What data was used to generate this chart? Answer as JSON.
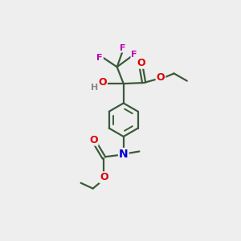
{
  "bg_color": "#eeeeee",
  "atom_colors": {
    "C": "#2d4d2d",
    "O": "#dd0000",
    "N": "#0000cc",
    "F": "#bb00bb",
    "H": "#888888"
  },
  "bond_color": "#3a5a3a",
  "bond_width": 1.6,
  "lw_inner": 1.4,
  "ring_r": 0.9,
  "ring_inner_r": 0.62
}
